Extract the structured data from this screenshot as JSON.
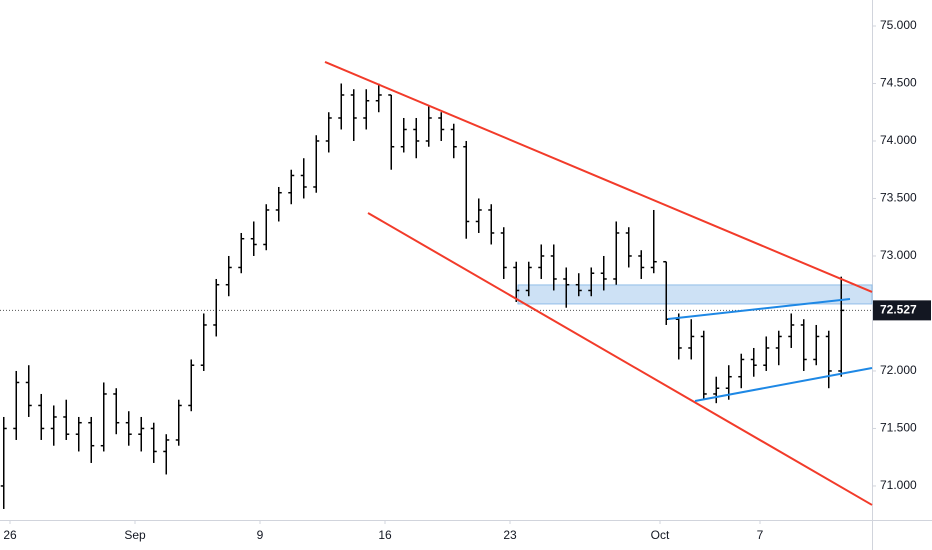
{
  "chart_data": {
    "type": "ohlc",
    "color": "#000000",
    "x": [
      -0.25,
      0.25,
      0.75,
      1.25,
      1.75,
      2.25,
      2.75,
      3.25,
      3.75,
      4.25,
      4.75,
      5.25,
      5.75,
      6.25,
      6.75,
      7.25,
      7.75,
      8.25,
      8.75,
      9.25,
      9.75,
      10.25,
      10.75,
      11.25,
      11.75,
      12.25,
      12.75,
      13.25,
      13.75,
      14.25,
      14.75,
      15.25,
      15.75,
      16.25,
      16.75,
      17.25,
      17.75,
      18.25,
      18.75,
      19.25,
      19.75,
      20.25,
      20.75,
      21.25,
      21.75,
      22.25,
      22.75,
      23.25,
      23.75,
      24.25,
      24.75,
      25.25,
      25.75,
      26.25,
      26.75,
      27.25,
      27.75,
      28.25,
      28.75,
      29.25,
      29.75,
      30.25,
      30.75,
      31.25,
      31.75,
      32.25,
      32.75,
      33.25
    ],
    "open": [
      71.0,
      71.5,
      71.9,
      71.7,
      71.5,
      71.6,
      71.45,
      71.55,
      71.35,
      71.8,
      71.55,
      71.45,
      71.5,
      71.3,
      71.4,
      71.7,
      72.05,
      72.4,
      72.75,
      72.9,
      73.15,
      73.1,
      73.4,
      73.55,
      73.7,
      73.6,
      74.0,
      74.2,
      74.4,
      74.2,
      74.35,
      74.4,
      73.95,
      74.1,
      74.0,
      74.2,
      74.1,
      73.95,
      73.3,
      73.4,
      73.2,
      72.9,
      72.7,
      72.9,
      73.0,
      72.8,
      72.75,
      72.7,
      72.85,
      72.8,
      73.2,
      73.0,
      72.9,
      72.95,
      72.45,
      72.2,
      72.3,
      71.8,
      71.85,
      71.95,
      72.1,
      72.05,
      72.2,
      72.3,
      72.4,
      72.1,
      72.3,
      72.0
    ],
    "high": [
      71.6,
      72.0,
      72.05,
      71.8,
      71.7,
      71.75,
      71.6,
      71.6,
      71.9,
      71.85,
      71.65,
      71.6,
      71.55,
      71.45,
      71.75,
      72.1,
      72.5,
      72.8,
      73.0,
      73.2,
      73.3,
      73.45,
      73.6,
      73.75,
      73.85,
      74.05,
      74.25,
      74.5,
      74.45,
      74.45,
      74.5,
      74.4,
      74.2,
      74.2,
      74.3,
      74.25,
      74.15,
      74.0,
      73.5,
      73.45,
      73.25,
      72.95,
      72.95,
      73.1,
      73.1,
      72.9,
      72.85,
      72.9,
      73.0,
      73.3,
      73.25,
      73.05,
      73.4,
      72.95,
      72.5,
      72.45,
      72.35,
      71.95,
      72.05,
      72.15,
      72.2,
      72.3,
      72.35,
      72.5,
      72.45,
      72.4,
      72.35,
      72.82
    ],
    "low": [
      70.8,
      71.4,
      71.6,
      71.4,
      71.35,
      71.4,
      71.3,
      71.2,
      71.3,
      71.45,
      71.35,
      71.3,
      71.2,
      71.1,
      71.35,
      71.65,
      72.0,
      72.3,
      72.65,
      72.85,
      73.0,
      73.05,
      73.3,
      73.45,
      73.5,
      73.55,
      73.9,
      74.1,
      74.0,
      74.1,
      74.25,
      73.75,
      73.9,
      73.85,
      73.95,
      74.0,
      73.85,
      73.15,
      73.2,
      73.1,
      72.8,
      72.6,
      72.65,
      72.8,
      72.7,
      72.55,
      72.65,
      72.65,
      72.7,
      72.75,
      72.9,
      72.8,
      72.85,
      72.4,
      72.1,
      72.1,
      71.75,
      71.72,
      71.75,
      71.85,
      71.95,
      72.0,
      72.05,
      72.2,
      72.0,
      72.05,
      71.85,
      71.95
    ],
    "close": [
      71.5,
      71.9,
      71.7,
      71.5,
      71.6,
      71.45,
      71.55,
      71.35,
      71.8,
      71.55,
      71.45,
      71.5,
      71.3,
      71.4,
      71.7,
      72.05,
      72.4,
      72.75,
      72.9,
      73.15,
      73.1,
      73.4,
      73.55,
      73.7,
      73.6,
      74.0,
      74.2,
      74.4,
      74.2,
      74.35,
      74.4,
      73.95,
      74.1,
      74.0,
      74.2,
      74.1,
      73.95,
      73.3,
      73.4,
      73.2,
      72.9,
      72.7,
      72.9,
      73.0,
      72.8,
      72.75,
      72.7,
      72.85,
      72.8,
      73.2,
      73.0,
      72.9,
      72.95,
      72.45,
      72.2,
      72.3,
      71.8,
      71.85,
      71.95,
      72.1,
      72.05,
      72.2,
      72.3,
      72.4,
      72.1,
      72.3,
      72.0,
      72.527
    ],
    "last_price": 72.527,
    "xlim": [
      -0.4,
      34.48
    ],
    "xticks": [
      {
        "value": 0,
        "label": "26"
      },
      {
        "value": 5,
        "label": "Sep"
      },
      {
        "value": 10,
        "label": "9"
      },
      {
        "value": 15,
        "label": "16"
      },
      {
        "value": 20,
        "label": "23"
      },
      {
        "value": 26,
        "label": "Oct"
      },
      {
        "value": 30,
        "label": "7"
      }
    ],
    "ylim": [
      70.704,
      75.226
    ],
    "yticks": [
      {
        "value": 75,
        "label": "75.000"
      },
      {
        "value": 74.5,
        "label": "74.500"
      },
      {
        "value": 74,
        "label": "74.000"
      },
      {
        "value": 73.5,
        "label": "73.500"
      },
      {
        "value": 73,
        "label": "73.000"
      },
      {
        "value": 72,
        "label": "72.000"
      },
      {
        "value": 71.5,
        "label": "71.500"
      },
      {
        "value": 71,
        "label": "71.000"
      }
    ],
    "trendlines": [
      {
        "color": "#f23b2a",
        "x": [
          12.6,
          34.48
        ],
        "y": [
          74.687,
          72.687
        ]
      },
      {
        "color": "#f23b2a",
        "x": [
          14.32,
          34.48
        ],
        "y": [
          73.374,
          70.835
        ]
      },
      {
        "color": "#1e88e5",
        "x": [
          26.32,
          33.6
        ],
        "y": [
          72.452,
          72.626
        ]
      },
      {
        "color": "#1e88e5",
        "x": [
          27.4,
          34.48
        ],
        "y": [
          71.739,
          72.026
        ]
      }
    ],
    "zones": [
      {
        "color": "#90bde8",
        "x": [
          20.32,
          34.48
        ],
        "y": [
          72.748,
          72.583
        ]
      }
    ]
  }
}
